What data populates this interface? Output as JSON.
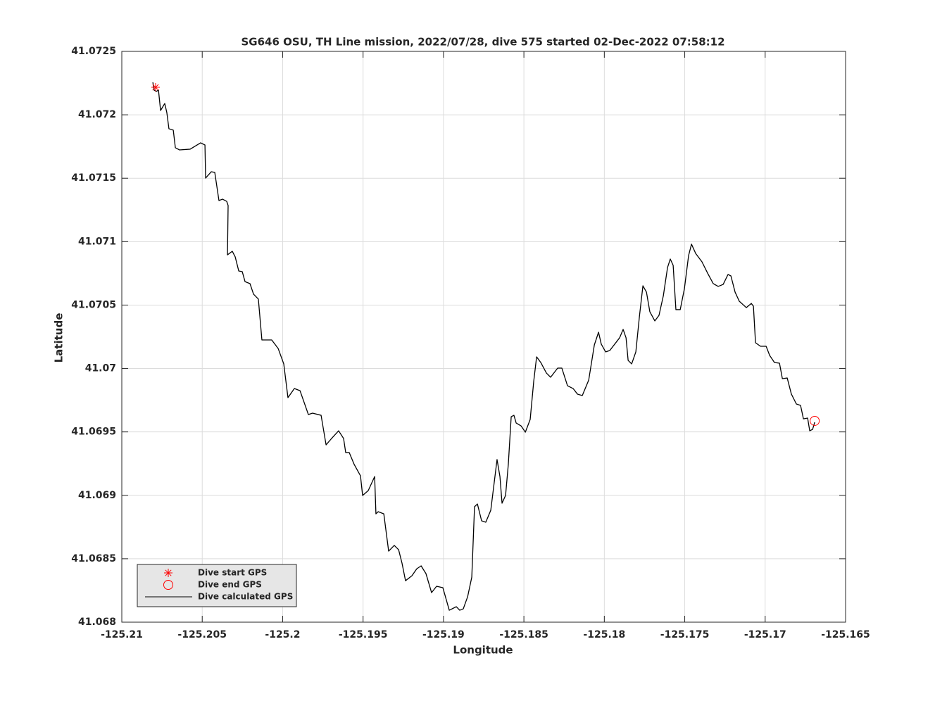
{
  "chart_data": {
    "type": "line",
    "title": "SG646 OSU, TH Line mission, 2022/07/28, dive 575 started 02-Dec-2022 07:58:12",
    "xlabel": "Longitude",
    "ylabel": "Latitude",
    "xlim": [
      -125.21,
      -125.165
    ],
    "ylim": [
      41.068,
      41.0725
    ],
    "xticks": [
      -125.21,
      -125.205,
      -125.2,
      -125.195,
      -125.19,
      -125.185,
      -125.18,
      -125.175,
      -125.17,
      -125.165
    ],
    "yticks": [
      41.068,
      41.0685,
      41.069,
      41.0695,
      41.07,
      41.0705,
      41.071,
      41.0715,
      41.072,
      41.0725
    ],
    "grid": true,
    "legend": "lower left",
    "series": [
      {
        "name": "Dive start GPS",
        "color": "#ff0000",
        "marker": "*",
        "x": [
          -125.2079
        ],
        "values": [
          41.072217
        ]
      },
      {
        "name": "Dive end GPS",
        "color": "#ff0000",
        "marker": "o",
        "x": [
          -125.16692
        ],
        "values": [
          41.069587
        ]
      },
      {
        "name": "Dive calculated GPS",
        "color": "#000000",
        "marker": "none",
        "x": [
          -125.20807,
          -125.20799,
          -125.20786,
          -125.20772,
          -125.20759,
          -125.20733,
          -125.2072,
          -125.20707,
          -125.2068,
          -125.20667,
          -125.20641,
          -125.20575,
          -125.2051,
          -125.20483,
          -125.20479,
          -125.20444,
          -125.20422,
          -125.20396,
          -125.20374,
          -125.20348,
          -125.20339,
          -125.20343,
          -125.20313,
          -125.20295,
          -125.20273,
          -125.20251,
          -125.20234,
          -125.20203,
          -125.20181,
          -125.20151,
          -125.20129,
          -125.20068,
          -125.20028,
          -125.19993,
          -125.19967,
          -125.19927,
          -125.19892,
          -125.1984,
          -125.19814,
          -125.19761,
          -125.1973,
          -125.197,
          -125.19652,
          -125.19621,
          -125.19608,
          -125.19586,
          -125.19555,
          -125.19516,
          -125.19503,
          -125.19468,
          -125.19428,
          -125.1942,
          -125.19406,
          -125.19371,
          -125.19341,
          -125.19306,
          -125.19279,
          -125.19258,
          -125.19236,
          -125.19196,
          -125.19166,
          -125.19139,
          -125.19109,
          -125.19074,
          -125.19043,
          -125.19004,
          -125.18964,
          -125.1892,
          -125.18899,
          -125.18877,
          -125.1885,
          -125.18824,
          -125.18807,
          -125.18789,
          -125.18763,
          -125.18737,
          -125.18706,
          -125.18667,
          -125.18649,
          -125.18636,
          -125.18614,
          -125.18597,
          -125.18579,
          -125.18562,
          -125.18548,
          -125.18518,
          -125.18491,
          -125.18461,
          -125.18439,
          -125.18421,
          -125.18395,
          -125.1836,
          -125.18334,
          -125.1829,
          -125.18264,
          -125.18229,
          -125.18194,
          -125.18167,
          -125.18137,
          -125.18097,
          -125.18062,
          -125.18036,
          -125.18019,
          -125.17992,
          -125.17966,
          -125.17905,
          -125.17883,
          -125.17865,
          -125.17852,
          -125.1783,
          -125.17804,
          -125.17782,
          -125.1776,
          -125.17738,
          -125.17717,
          -125.17686,
          -125.1766,
          -125.17633,
          -125.17607,
          -125.1759,
          -125.17572,
          -125.17555,
          -125.17528,
          -125.17502,
          -125.17476,
          -125.17458,
          -125.17432,
          -125.17393,
          -125.17358,
          -125.17323,
          -125.17292,
          -125.17261,
          -125.17231,
          -125.17213,
          -125.17187,
          -125.17161,
          -125.17117,
          -125.17086,
          -125.17073,
          -125.1706,
          -125.17029,
          -125.16994,
          -125.16972,
          -125.16942,
          -125.16911,
          -125.16893,
          -125.16863,
          -125.16837,
          -125.16806,
          -125.1678,
          -125.16762,
          -125.16736,
          -125.16723,
          -125.16705,
          -125.16692
        ],
        "values": [
          41.072256,
          41.072195,
          41.072184,
          41.072195,
          41.072034,
          41.072089,
          41.072017,
          41.07189,
          41.071879,
          41.07174,
          41.071723,
          41.071729,
          41.071779,
          41.071762,
          41.071501,
          41.071551,
          41.071546,
          41.071324,
          41.071335,
          41.071318,
          41.071285,
          41.070896,
          41.070924,
          41.07088,
          41.070769,
          41.070763,
          41.070685,
          41.070669,
          41.070586,
          41.070547,
          41.070225,
          41.070225,
          41.070158,
          41.070036,
          41.06977,
          41.069842,
          41.069825,
          41.069637,
          41.069648,
          41.069631,
          41.069398,
          41.069442,
          41.069509,
          41.069448,
          41.069337,
          41.069337,
          41.069243,
          41.069154,
          41.068999,
          41.069037,
          41.069148,
          41.068854,
          41.068871,
          41.068854,
          41.06856,
          41.068605,
          41.068571,
          41.068466,
          41.068327,
          41.068366,
          41.068421,
          41.068444,
          41.068383,
          41.068233,
          41.068283,
          41.068272,
          41.068094,
          41.068122,
          41.068094,
          41.068105,
          41.0682,
          41.068355,
          41.06891,
          41.068932,
          41.068799,
          41.068788,
          41.068882,
          41.069282,
          41.069148,
          41.068938,
          41.068999,
          41.069243,
          41.06962,
          41.069631,
          41.06957,
          41.069548,
          41.069498,
          41.069598,
          41.069898,
          41.070092,
          41.070047,
          41.069964,
          41.069931,
          41.070003,
          41.070003,
          41.069864,
          41.069842,
          41.069798,
          41.069787,
          41.069909,
          41.070186,
          41.070286,
          41.070192,
          41.070131,
          41.070142,
          41.070242,
          41.070308,
          41.070242,
          41.070064,
          41.070036,
          41.070131,
          41.070408,
          41.070652,
          41.070602,
          41.070447,
          41.070375,
          41.070419,
          41.070574,
          41.070796,
          41.070863,
          41.070813,
          41.070464,
          41.070464,
          41.07063,
          41.070891,
          41.07098,
          41.070907,
          41.070841,
          41.070752,
          41.070669,
          41.070647,
          41.070663,
          41.070741,
          41.07073,
          41.070602,
          41.07053,
          41.07048,
          41.070513,
          41.070491,
          41.070203,
          41.070175,
          41.070175,
          41.070103,
          41.070047,
          41.070042,
          41.06992,
          41.069925,
          41.069798,
          41.06972,
          41.069709,
          41.069603,
          41.069609,
          41.069509,
          41.06952,
          41.069576
        ]
      }
    ]
  }
}
